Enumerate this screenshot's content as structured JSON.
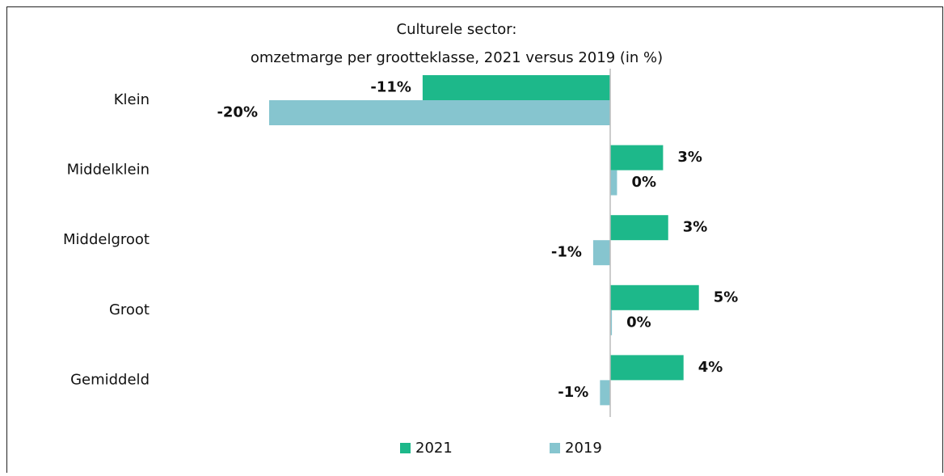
{
  "chart_data": {
    "type": "hbar",
    "title": "Culturele sector:",
    "subtitle": "omzetmarge per grootteklasse, 2021 versus 2019 (in %)",
    "categories": [
      "Klein",
      "Middelklein",
      "Middelgroot",
      "Groot",
      "Gemiddeld"
    ],
    "series": [
      {
        "name": "2021",
        "color": "#1db88a",
        "values": [
          -11,
          3.1,
          3.4,
          5.2,
          4.3
        ],
        "value_labels": [
          "-11%",
          "3%",
          "3%",
          "5%",
          "4%"
        ]
      },
      {
        "name": "2019",
        "color": "#86c5cf",
        "values": [
          -20,
          0.4,
          -1,
          0.1,
          -0.6
        ],
        "value_labels": [
          "-20%",
          "0%",
          "-1%",
          "0%",
          "-1%"
        ]
      }
    ]
  }
}
